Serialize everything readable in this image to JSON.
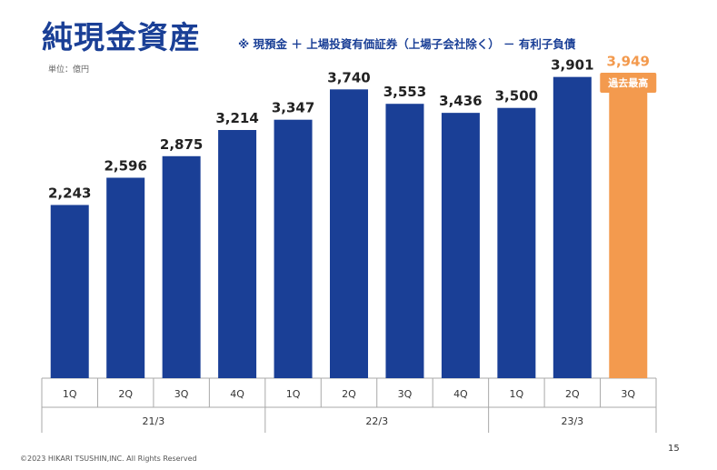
{
  "header": {
    "title": "純現金資産",
    "subtitle": "※ 現預金 ＋ 上場投資有価証券（上場子会社除く） － 有利子負債",
    "unit": "単位：億円"
  },
  "chart_data": {
    "type": "bar",
    "categories": [
      "1Q",
      "2Q",
      "3Q",
      "4Q",
      "1Q",
      "2Q",
      "3Q",
      "4Q",
      "1Q",
      "2Q",
      "3Q"
    ],
    "groups": [
      {
        "label": "21/3",
        "count": 4
      },
      {
        "label": "22/3",
        "count": 4
      },
      {
        "label": "23/3",
        "count": 3
      }
    ],
    "values": [
      2243,
      2596,
      2875,
      3214,
      3347,
      3740,
      3553,
      3436,
      3500,
      3901,
      3949
    ],
    "value_labels": [
      "2,243",
      "2,596",
      "2,875",
      "3,214",
      "3,347",
      "3,740",
      "3,553",
      "3,436",
      "3,500",
      "3,901",
      "3,949"
    ],
    "highlight_index": 10,
    "highlight_badge": "過去最高",
    "ylim": [
      0,
      4250
    ],
    "colors": {
      "bar": "#1a3f96",
      "highlight": "#f39a4e"
    }
  },
  "footer": {
    "copyright": "©2023 HIKARI TSUSHIN,INC. All Rights Reserved",
    "page_number": "15"
  }
}
